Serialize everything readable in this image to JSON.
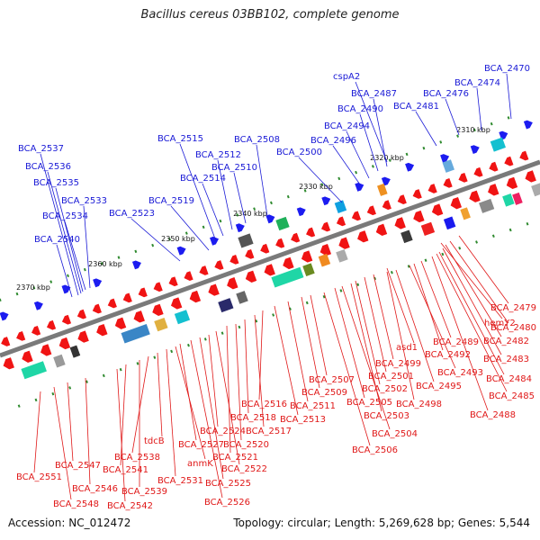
{
  "title": "Bacillus cereus 03BB102, complete genome",
  "footer": {
    "accession": "Accession: NC_012472",
    "summary": "Topology: circular; Length: 5,269,628 bp; Genes: 5,544"
  },
  "colors": {
    "forward_label": "#1a1ad6",
    "reverse_label": "#e01818",
    "backbone": "#7a7a7a",
    "forward_gene": "#1c1cf0",
    "reverse_gene": "#f01414",
    "tick": "#2f8a2f"
  },
  "ticks": [
    "2310 kbp",
    "2320 kbp",
    "2330 kbp",
    "2340 kbp",
    "2350 kbp",
    "2360 kbp",
    "2370 kbp"
  ],
  "forward_genes": [
    "BCA_2470",
    "BCA_2474",
    "BCA_2476",
    "BCA_2481",
    "cspA2",
    "BCA_2487",
    "BCA_2490",
    "BCA_2494",
    "BCA_2496",
    "BCA_2500",
    "BCA_2508",
    "BCA_2510",
    "BCA_2512",
    "BCA_2514",
    "BCA_2515",
    "BCA_2519",
    "BCA_2523",
    "BCA_2533",
    "BCA_2534",
    "BCA_2535",
    "BCA_2536",
    "BCA_2537",
    "BCA_2540"
  ],
  "reverse_genes": [
    "BCA_2479",
    "BCA_2480",
    "hemY2",
    "BCA_2482",
    "BCA_2483",
    "BCA_2484",
    "BCA_2485",
    "BCA_2488",
    "BCA_2489",
    "BCA_2492",
    "BCA_2493",
    "asd1",
    "BCA_2495",
    "BCA_2498",
    "BCA_2499",
    "BCA_2501",
    "BCA_2502",
    "BCA_2503",
    "BCA_2504",
    "BCA_2505",
    "BCA_2506",
    "BCA_2507",
    "BCA_2509",
    "BCA_2511",
    "BCA_2513",
    "BCA_2516",
    "BCA_2517",
    "BCA_2518",
    "BCA_2520",
    "BCA_2521",
    "BCA_2522",
    "BCA_2524",
    "BCA_2525",
    "BCA_2526",
    "BCA_2527",
    "anmK",
    "BCA_2531",
    "tdcB",
    "BCA_2538",
    "BCA_2539",
    "BCA_2541",
    "BCA_2542",
    "BCA_2546",
    "BCA_2547",
    "BCA_2548",
    "BCA_2551"
  ]
}
